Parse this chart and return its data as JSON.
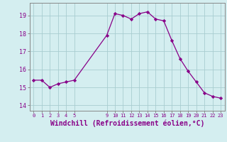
{
  "x": [
    0,
    1,
    2,
    3,
    4,
    5,
    9,
    10,
    11,
    12,
    13,
    14,
    15,
    16,
    17,
    18,
    19,
    20,
    21,
    22,
    23
  ],
  "y": [
    15.4,
    15.4,
    15.0,
    15.2,
    15.3,
    15.4,
    17.9,
    19.1,
    19.0,
    18.8,
    19.1,
    19.2,
    18.8,
    18.7,
    17.6,
    16.6,
    15.9,
    15.3,
    14.7,
    14.5,
    14.4
  ],
  "line_color": "#880088",
  "marker_color": "#880088",
  "bg_color": "#d4eef0",
  "grid_color": "#a8cdd0",
  "xlabel": "Windchill (Refroidissement éolien,°C)",
  "xlabel_fontsize": 7,
  "tick_label_color": "#880088",
  "yticks": [
    14,
    15,
    16,
    17,
    18,
    19
  ],
  "xticks": [
    0,
    1,
    2,
    3,
    4,
    5,
    9,
    10,
    11,
    12,
    13,
    14,
    15,
    16,
    17,
    18,
    19,
    20,
    21,
    22,
    23
  ],
  "ylim": [
    13.7,
    19.7
  ],
  "xlim": [
    -0.5,
    23.5
  ]
}
